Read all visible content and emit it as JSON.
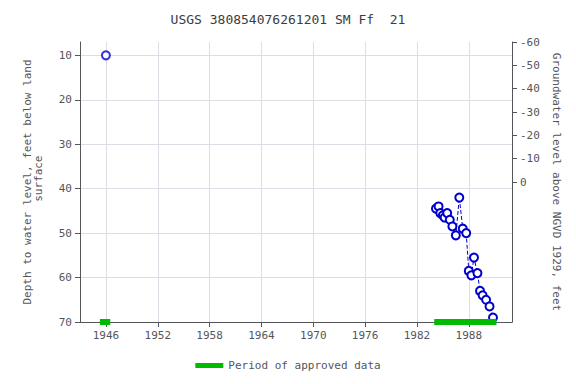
{
  "chart_data": {
    "type": "line",
    "title": "USGS 380854076261201 SM Ff  21",
    "ylabel": "Depth to water level, feet below land\n surface",
    "y2label": "Groundwater level above NGVD 1929, feet",
    "xlim": [
      1943,
      1993
    ],
    "xticks": [
      1946,
      1952,
      1958,
      1964,
      1970,
      1976,
      1982,
      1988
    ],
    "ylim": [
      70,
      7
    ],
    "yticks": [
      10,
      20,
      30,
      40,
      50,
      60,
      70
    ],
    "y2lim": [
      60,
      -60
    ],
    "y2ticks": [
      0,
      -10,
      -20,
      -30,
      -40,
      -50,
      -60
    ],
    "grid": true,
    "legend": "bottom",
    "series": [
      {
        "type": "scatter",
        "color": "#0000cc",
        "marker": "hollow_circle",
        "x": [
          1946.0
        ],
        "values": [
          10.0
        ]
      },
      {
        "type": "line",
        "color": "#0000cc",
        "marker": "hollow_circle",
        "line_style": "dashed",
        "x": [
          1984.2,
          1984.5,
          1984.7,
          1985.0,
          1985.2,
          1985.5,
          1985.8,
          1986.1,
          1986.5,
          1986.9,
          1987.3,
          1987.7,
          1988.0,
          1988.3,
          1988.6,
          1989.0,
          1989.3,
          1989.6,
          1990.0,
          1990.4,
          1990.8
        ],
        "values": [
          44.5,
          44.0,
          45.5,
          46.0,
          46.5,
          45.5,
          47.0,
          48.5,
          50.5,
          42.0,
          49.0,
          50.0,
          58.5,
          59.5,
          55.5,
          59.0,
          63.0,
          64.0,
          65.0,
          66.5,
          69.0
        ]
      },
      {
        "name": "Period of approved data",
        "type": "line",
        "color": "#00bb00",
        "marker": "none",
        "line_style": "solid",
        "x": [
          1945.3,
          1946.5
        ],
        "values": [
          70,
          70
        ]
      },
      {
        "name": "Period of approved data",
        "type": "line",
        "color": "#00bb00",
        "marker": "none",
        "line_style": "solid",
        "x": [
          1984.0,
          1991.2
        ],
        "values": [
          70,
          70
        ]
      }
    ]
  }
}
